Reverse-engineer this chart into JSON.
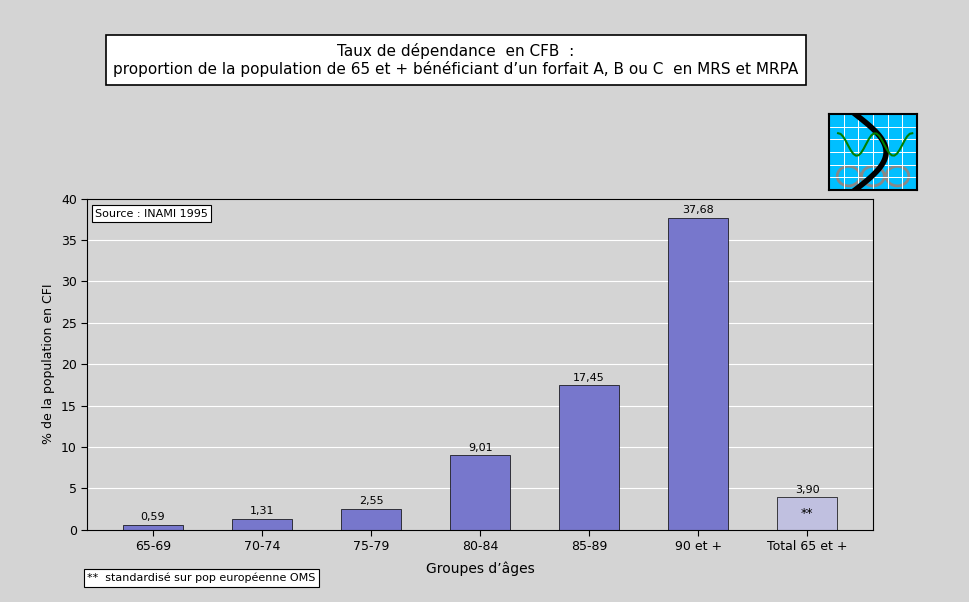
{
  "categories": [
    "65-69",
    "70-74",
    "75-79",
    "80-84",
    "85-89",
    "90 et +",
    "Total 65 et +"
  ],
  "values": [
    0.59,
    1.31,
    2.55,
    9.01,
    17.45,
    37.68,
    3.9
  ],
  "bar_colors": [
    "#7777cc",
    "#7777cc",
    "#7777cc",
    "#7777cc",
    "#7777cc",
    "#7777cc",
    "#c0c0e0"
  ],
  "value_labels": [
    "0,59",
    "1,31",
    "2,55",
    "9,01",
    "17,45",
    "37,68",
    "3,90"
  ],
  "title_line1": "Taux de dépendance  en CFB  :",
  "title_line2": "proportion de la population de 65 et + bénéficiant d’un forfait A, B ou C  en MRS et MRPA",
  "ylabel": "% de la population en CFI",
  "xlabel": "Groupes d’âges",
  "ylim": [
    0,
    40
  ],
  "yticks": [
    0,
    5,
    10,
    15,
    20,
    25,
    30,
    35,
    40
  ],
  "source_text": "Source : INAMI 1995",
  "footnote_text": "**  standardisé sur pop européenne OMS",
  "background_color": "#d4d4d4",
  "plot_background": "#d4d4d4",
  "bar_last_annotation": "**",
  "title_fontsize": 11,
  "bar_fontsize": 8,
  "axis_fontsize": 9
}
